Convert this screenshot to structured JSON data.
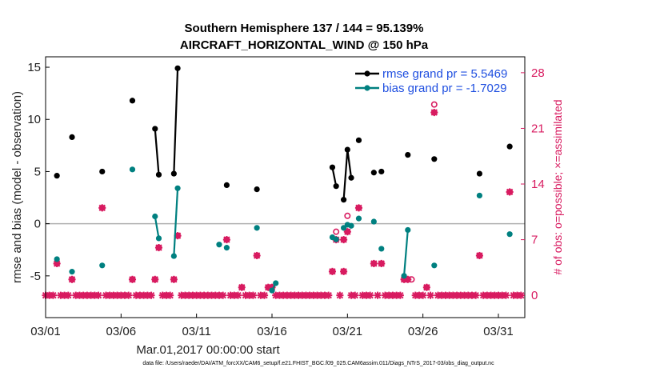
{
  "colors": {
    "rmse": "#000000",
    "bias": "#008080",
    "obs": "#d81b60",
    "legend_text": "#1f4fe0",
    "zero_line": "#b0b0b0"
  },
  "chart_data": {
    "type": "scatter",
    "title_line1": "Southern Hemisphere 137 / 144 = 95.139%",
    "title_line2": "AIRCRAFT_HORIZONTAL_WIND @ 150 hPa",
    "xlabel": "Mar.01,2017 00:00:00 start",
    "ylabel": "rmse and bias (model - observation)",
    "y2label": "# of obs: o=possible; ×=assimilated",
    "xlim": [
      0,
      31.75
    ],
    "ylim": [
      -9,
      16
    ],
    "y2lim": [
      -2.8,
      30
    ],
    "x_ticks": [
      0,
      5,
      10,
      15,
      20,
      25,
      30
    ],
    "x_tick_labels": [
      "03/01",
      "03/06",
      "03/11",
      "03/16",
      "03/21",
      "03/26",
      "03/31"
    ],
    "y_ticks": [
      15,
      10,
      5,
      0,
      -5
    ],
    "y_tick_labels": [
      "15",
      "10",
      "5",
      "0",
      "-5"
    ],
    "y2_ticks": [
      28,
      21,
      14,
      7,
      0
    ],
    "y2_tick_labels": [
      "28",
      "21",
      "14",
      "7",
      "0"
    ],
    "legend": [
      "rmse grand pr = 5.5469",
      "bias grand pr = -1.7029"
    ],
    "footnote": "data file: /Users/raeder/DAI/ATM_forcXX/CAM6_setup/f.e21.FHIST_BGC.f09_025.CAM6assim.011/Diags_NTrS_2017-03/obs_diag_output.nc",
    "rmse_segments": [
      [
        [
          0.75,
          4.6
        ]
      ],
      [
        [
          1.75,
          8.3
        ]
      ],
      [
        [
          3.75,
          5.0
        ]
      ],
      [
        [
          5.75,
          11.8
        ]
      ],
      [
        [
          7.25,
          9.1
        ],
        [
          7.5,
          4.7
        ]
      ],
      [
        [
          8.5,
          4.8
        ],
        [
          8.75,
          14.9
        ]
      ],
      [
        [
          12.0,
          3.7
        ]
      ],
      [
        [
          14.0,
          3.3
        ]
      ],
      [
        [
          19.0,
          5.4
        ],
        [
          19.25,
          3.6
        ]
      ],
      [
        [
          19.75,
          2.3
        ],
        [
          20.0,
          7.1
        ],
        [
          20.25,
          4.4
        ]
      ],
      [
        [
          20.75,
          8.0
        ]
      ],
      [
        [
          21.75,
          4.9
        ]
      ],
      [
        [
          22.25,
          5.0
        ]
      ],
      [
        [
          24.0,
          6.6
        ]
      ],
      [
        [
          25.75,
          6.2
        ]
      ],
      [
        [
          28.75,
          4.8
        ]
      ],
      [
        [
          30.75,
          7.4
        ]
      ]
    ],
    "bias_segments": [
      [
        [
          0.75,
          -3.4
        ]
      ],
      [
        [
          1.75,
          -4.6
        ]
      ],
      [
        [
          3.75,
          -4.0
        ]
      ],
      [
        [
          5.75,
          5.2
        ]
      ],
      [
        [
          7.25,
          0.7
        ],
        [
          7.5,
          -1.4
        ]
      ],
      [
        [
          8.5,
          -3.1
        ],
        [
          8.75,
          3.4
        ]
      ],
      [
        [
          11.5,
          -2.0
        ]
      ],
      [
        [
          12.0,
          -2.3
        ]
      ],
      [
        [
          14.0,
          -0.4
        ]
      ],
      [
        [
          15.0,
          -6.4
        ],
        [
          15.25,
          -5.7
        ]
      ],
      [
        [
          19.0,
          -1.3
        ],
        [
          19.25,
          -1.5
        ]
      ],
      [
        [
          19.75,
          -0.4
        ],
        [
          20.0,
          -0.1
        ],
        [
          20.25,
          -0.2
        ]
      ],
      [
        [
          20.75,
          0.5
        ]
      ],
      [
        [
          21.75,
          0.2
        ]
      ],
      [
        [
          22.25,
          -2.4
        ]
      ],
      [
        [
          23.75,
          -5.0
        ],
        [
          24.0,
          -0.6
        ]
      ],
      [
        [
          25.75,
          -4.0
        ]
      ],
      [
        [
          28.75,
          2.7
        ]
      ],
      [
        [
          30.75,
          -1.0
        ]
      ]
    ],
    "obs_possible": [
      [
        0.75,
        4
      ],
      [
        1.75,
        2
      ],
      [
        3.75,
        11
      ],
      [
        5.75,
        2
      ],
      [
        7.25,
        2
      ],
      [
        7.5,
        6
      ],
      [
        8.5,
        2
      ],
      [
        8.75,
        7.5
      ],
      [
        12.0,
        7
      ],
      [
        13.0,
        1
      ],
      [
        14.0,
        5
      ],
      [
        14.75,
        1
      ],
      [
        15.0,
        1
      ],
      [
        19.0,
        3
      ],
      [
        19.25,
        7
      ],
      [
        19.25,
        8
      ],
      [
        19.75,
        3
      ],
      [
        19.75,
        7
      ],
      [
        20.0,
        8
      ],
      [
        20.0,
        10
      ],
      [
        20.75,
        11
      ],
      [
        21.75,
        4
      ],
      [
        22.25,
        4
      ],
      [
        23.75,
        2
      ],
      [
        24.0,
        2
      ],
      [
        24.25,
        2
      ],
      [
        25.25,
        1
      ],
      [
        25.75,
        23
      ],
      [
        25.75,
        24
      ],
      [
        28.75,
        5
      ],
      [
        30.75,
        13
      ]
    ],
    "obs_assimilated": [
      [
        0.75,
        4
      ],
      [
        1.75,
        2
      ],
      [
        3.75,
        11
      ],
      [
        5.75,
        2
      ],
      [
        7.25,
        2
      ],
      [
        7.5,
        6
      ],
      [
        8.5,
        2
      ],
      [
        8.75,
        7.5
      ],
      [
        12.0,
        7
      ],
      [
        13.0,
        1
      ],
      [
        14.0,
        5
      ],
      [
        14.75,
        1
      ],
      [
        15.0,
        1
      ],
      [
        19.0,
        3
      ],
      [
        19.25,
        7
      ],
      [
        19.75,
        3
      ],
      [
        19.75,
        7
      ],
      [
        20.0,
        8
      ],
      [
        20.75,
        11
      ],
      [
        21.75,
        4
      ],
      [
        22.25,
        4
      ],
      [
        23.75,
        2
      ],
      [
        24.0,
        2
      ],
      [
        25.25,
        1
      ],
      [
        25.75,
        23
      ],
      [
        28.75,
        5
      ],
      [
        30.75,
        13
      ]
    ]
  }
}
